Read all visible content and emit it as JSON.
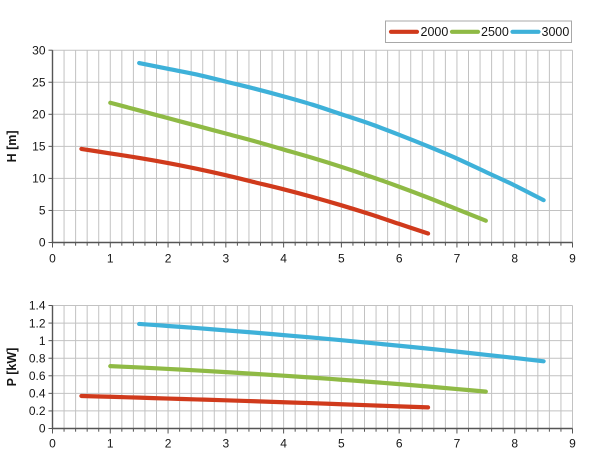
{
  "figure": {
    "background": "#ffffff",
    "kind": "pump performance curves, two stacked XY charts"
  },
  "legend": {
    "border_color": "#a8a8a8",
    "fill": "#ffffff",
    "entries": [
      {
        "label": "2000",
        "color": "#d03a1c"
      },
      {
        "label": "2500",
        "color": "#8fba45"
      },
      {
        "label": "3000",
        "color": "#3eb1d9"
      }
    ]
  },
  "colors": {
    "gridline": "#c2c2c2",
    "axis": "#555555",
    "text": "#161616",
    "series_2000": "#d03a1c",
    "series_2500": "#8fba45",
    "series_3000": "#3eb1d9"
  },
  "chart_data": [
    {
      "type": "line",
      "title": "",
      "xlabel": "",
      "ylabel": "H [m]",
      "xlim": [
        0,
        9
      ],
      "ylim": [
        0,
        30
      ],
      "x_major_unit": 1,
      "x_minor_unit": 0.2,
      "y_major_unit": 5,
      "x_ticks": [
        "0",
        "1",
        "2",
        "3",
        "4",
        "5",
        "6",
        "7",
        "8",
        "9"
      ],
      "y_ticks": [
        "0",
        "5",
        "10",
        "15",
        "20",
        "25",
        "30"
      ],
      "grid": "vertical minor every 0.2, horizontal major every 5",
      "legend_position": "top-right, above plot",
      "series": [
        {
          "name": "2000",
          "color": "#d03a1c",
          "points": [
            [
              0.5,
              14.6
            ],
            [
              1.0,
              13.9
            ],
            [
              1.5,
              13.2
            ],
            [
              2.0,
              12.4
            ],
            [
              2.5,
              11.5
            ],
            [
              3.0,
              10.5
            ],
            [
              3.5,
              9.4
            ],
            [
              4.0,
              8.3
            ],
            [
              4.5,
              7.1
            ],
            [
              5.0,
              5.8
            ],
            [
              5.5,
              4.4
            ],
            [
              6.0,
              2.9
            ],
            [
              6.5,
              1.4
            ]
          ]
        },
        {
          "name": "2500",
          "color": "#8fba45",
          "points": [
            [
              1.0,
              21.8
            ],
            [
              1.5,
              20.6
            ],
            [
              2.0,
              19.4
            ],
            [
              2.5,
              18.2
            ],
            [
              3.0,
              17.0
            ],
            [
              3.5,
              15.8
            ],
            [
              4.0,
              14.5
            ],
            [
              4.5,
              13.2
            ],
            [
              5.0,
              11.8
            ],
            [
              5.5,
              10.3
            ],
            [
              6.0,
              8.7
            ],
            [
              6.5,
              7.0
            ],
            [
              7.0,
              5.2
            ],
            [
              7.5,
              3.4
            ]
          ]
        },
        {
          "name": "3000",
          "color": "#3eb1d9",
          "points": [
            [
              1.5,
              28.0
            ],
            [
              2.0,
              27.1
            ],
            [
              2.5,
              26.2
            ],
            [
              3.0,
              25.1
            ],
            [
              3.5,
              24.0
            ],
            [
              4.0,
              22.8
            ],
            [
              4.5,
              21.5
            ],
            [
              5.0,
              20.0
            ],
            [
              5.5,
              18.5
            ],
            [
              6.0,
              16.8
            ],
            [
              6.5,
              15.0
            ],
            [
              7.0,
              13.1
            ],
            [
              7.5,
              11.0
            ],
            [
              8.0,
              8.9
            ],
            [
              8.5,
              6.6
            ]
          ]
        }
      ]
    },
    {
      "type": "line",
      "title": "",
      "xlabel": "",
      "ylabel": "P [kW]",
      "xlim": [
        0,
        9
      ],
      "ylim": [
        0,
        1.4
      ],
      "x_major_unit": 1,
      "x_minor_unit": 0.2,
      "y_major_unit": 0.2,
      "x_ticks": [
        "0",
        "1",
        "2",
        "3",
        "4",
        "5",
        "6",
        "7",
        "8",
        "9"
      ],
      "y_ticks": [
        "0",
        "0.2",
        "0.4",
        "0.6",
        "0.8",
        "1",
        "1.2",
        "1.4"
      ],
      "grid": "vertical minor every 0.2, horizontal major every 0.2",
      "legend_position": "none",
      "series": [
        {
          "name": "2000",
          "color": "#d03a1c",
          "points": [
            [
              0.5,
              0.37
            ],
            [
              1.0,
              0.361
            ],
            [
              1.5,
              0.351
            ],
            [
              2.0,
              0.341
            ],
            [
              2.5,
              0.331
            ],
            [
              3.0,
              0.321
            ],
            [
              3.5,
              0.31
            ],
            [
              4.0,
              0.299
            ],
            [
              4.5,
              0.288
            ],
            [
              5.0,
              0.276
            ],
            [
              5.5,
              0.264
            ],
            [
              6.0,
              0.252
            ],
            [
              6.5,
              0.24
            ]
          ]
        },
        {
          "name": "2500",
          "color": "#8fba45",
          "points": [
            [
              1.0,
              0.71
            ],
            [
              1.5,
              0.695
            ],
            [
              2.0,
              0.678
            ],
            [
              2.5,
              0.661
            ],
            [
              3.0,
              0.642
            ],
            [
              3.5,
              0.622
            ],
            [
              4.0,
              0.601
            ],
            [
              4.5,
              0.579
            ],
            [
              5.0,
              0.555
            ],
            [
              5.5,
              0.531
            ],
            [
              6.0,
              0.505
            ],
            [
              6.5,
              0.478
            ],
            [
              7.0,
              0.449
            ],
            [
              7.5,
              0.42
            ]
          ]
        },
        {
          "name": "3000",
          "color": "#3eb1d9",
          "points": [
            [
              1.5,
              1.19
            ],
            [
              2.0,
              1.167
            ],
            [
              2.5,
              1.143
            ],
            [
              3.0,
              1.117
            ],
            [
              3.5,
              1.091
            ],
            [
              4.0,
              1.063
            ],
            [
              4.5,
              1.035
            ],
            [
              5.0,
              1.005
            ],
            [
              5.5,
              0.974
            ],
            [
              6.0,
              0.942
            ],
            [
              6.5,
              0.909
            ],
            [
              7.0,
              0.875
            ],
            [
              7.5,
              0.839
            ],
            [
              8.0,
              0.803
            ],
            [
              8.5,
              0.765
            ]
          ]
        }
      ]
    }
  ]
}
